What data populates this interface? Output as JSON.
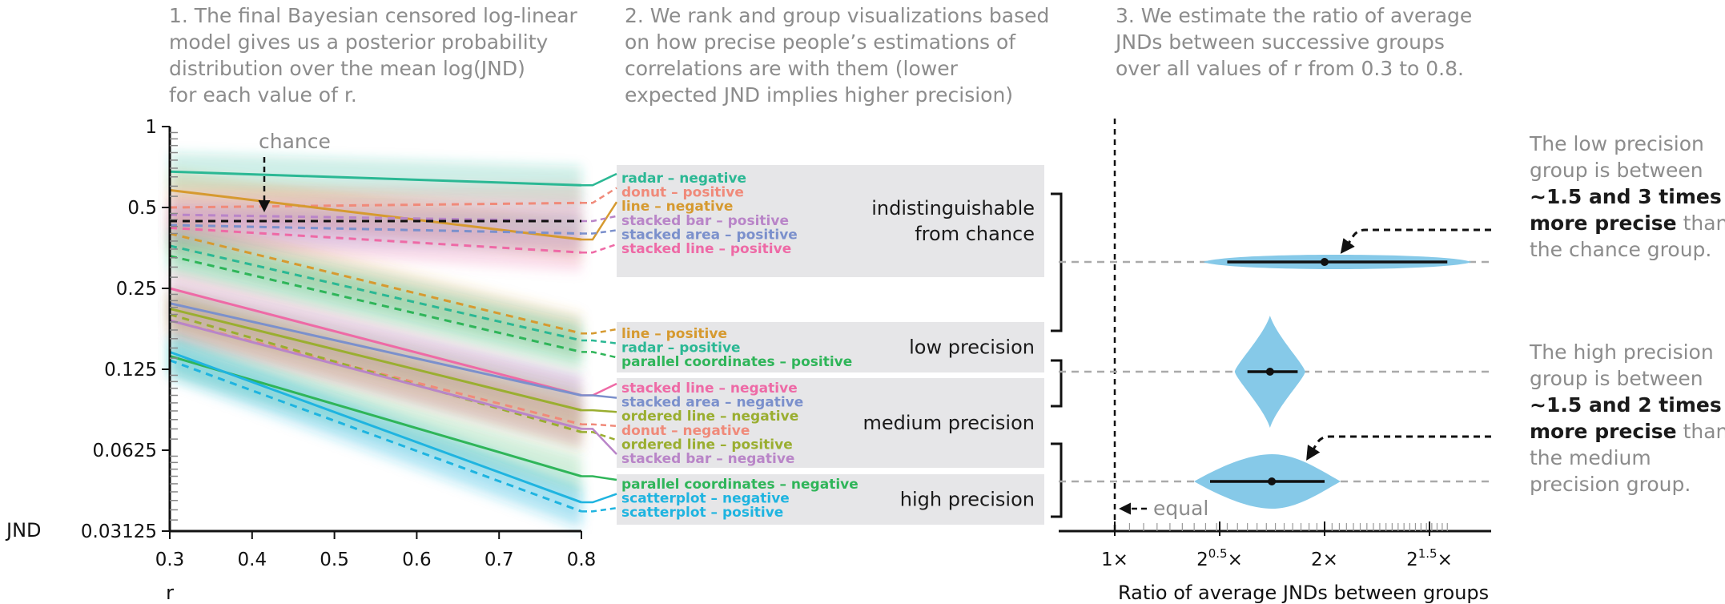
{
  "captions": {
    "panel1": [
      "1. The final Bayesian censored log-linear",
      "model gives us a posterior probability",
      "distribution over the mean log(JND)",
      "for each value of r."
    ],
    "panel2": [
      "2. We rank and group visualizations based",
      "on how precise people’s estimations of",
      "correlations are with them (lower",
      "expected JND implies higher precision)"
    ],
    "panel3": [
      "3. We estimate the ratio of average",
      "JNDs between successive groups",
      "over all values of r from 0.3 to 0.8."
    ]
  },
  "notes": {
    "chance_label": "chance",
    "equal_label": "equal",
    "low_note": [
      {
        "text": "The low precision",
        "bold": false
      },
      {
        "text": "group is between",
        "bold": false
      },
      {
        "text": "~1.5 and 3 times",
        "bold": true
      },
      {
        "parts": [
          {
            "text": "more precise",
            "bold": true
          },
          {
            "text": " than",
            "bold": false
          }
        ]
      },
      {
        "text": "the chance group.",
        "bold": false
      }
    ],
    "high_note": [
      {
        "text": "The high precision",
        "bold": false
      },
      {
        "text": "group is between",
        "bold": false
      },
      {
        "text": "~1.5 and 2 times",
        "bold": true
      },
      {
        "parts": [
          {
            "text": "more precise",
            "bold": true
          },
          {
            "text": " than",
            "bold": false
          }
        ]
      },
      {
        "text": "the medium",
        "bold": false
      },
      {
        "text": "precision group.",
        "bold": false
      }
    ]
  },
  "chart_data": [
    {
      "type": "line",
      "xlabel": "r",
      "ylabel": "JND",
      "scale_y": "log2",
      "xlim": [
        0.3,
        0.8
      ],
      "ylim": [
        0.03125,
        1
      ],
      "x_ticks": [
        "0.3",
        "0.4",
        "0.5",
        "0.6",
        "0.7",
        "0.8"
      ],
      "y_ticks": [
        "1",
        "0.5",
        "0.25",
        "0.125",
        "0.0625",
        "0.03125"
      ],
      "chance_jnd": 0.445,
      "series": [
        {
          "name": "radar – negative",
          "color": "#2bb894",
          "dashed": false,
          "y_at_03": 0.68,
          "y_at_08": 0.605,
          "group": "indistinguishable from chance"
        },
        {
          "name": "donut – positive",
          "color": "#f08a7a",
          "dashed": true,
          "y_at_03": 0.5,
          "y_at_08": 0.52,
          "group": "indistinguishable from chance"
        },
        {
          "name": "line – negative",
          "color": "#d69a30",
          "dashed": false,
          "y_at_03": 0.58,
          "y_at_08": 0.38,
          "group": "indistinguishable from chance"
        },
        {
          "name": "stacked bar – positive",
          "color": "#b985c8",
          "dashed": true,
          "y_at_03": 0.47,
          "y_at_08": 0.445,
          "group": "indistinguishable from chance"
        },
        {
          "name": "stacked area – positive",
          "color": "#7b90cc",
          "dashed": true,
          "y_at_03": 0.43,
          "y_at_08": 0.4,
          "group": "indistinguishable from chance"
        },
        {
          "name": "stacked line – positive",
          "color": "#ee6aa6",
          "dashed": true,
          "y_at_03": 0.42,
          "y_at_08": 0.34,
          "group": "indistinguishable from chance"
        },
        {
          "name": "line – positive",
          "color": "#d69a30",
          "dashed": true,
          "y_at_03": 0.4,
          "y_at_08": 0.17,
          "group": "low precision"
        },
        {
          "name": "radar – positive",
          "color": "#2bb894",
          "dashed": true,
          "y_at_03": 0.36,
          "y_at_08": 0.16,
          "group": "low precision"
        },
        {
          "name": "parallel coordinates – positive",
          "color": "#2fb559",
          "dashed": true,
          "y_at_03": 0.33,
          "y_at_08": 0.145,
          "group": "low precision"
        },
        {
          "name": "stacked line – negative",
          "color": "#ee6aa6",
          "dashed": false,
          "y_at_03": 0.25,
          "y_at_08": 0.1,
          "group": "medium precision"
        },
        {
          "name": "stacked area – negative",
          "color": "#7b90cc",
          "dashed": false,
          "y_at_03": 0.22,
          "y_at_08": 0.1,
          "group": "medium precision"
        },
        {
          "name": "ordered line – negative",
          "color": "#9aae30",
          "dashed": false,
          "y_at_03": 0.21,
          "y_at_08": 0.088,
          "group": "medium precision"
        },
        {
          "name": "donut – negative",
          "color": "#f08a7a",
          "dashed": true,
          "y_at_03": 0.19,
          "y_at_08": 0.078,
          "group": "medium precision"
        },
        {
          "name": "ordered line – positive",
          "color": "#9aae30",
          "dashed": true,
          "y_at_03": 0.2,
          "y_at_08": 0.073,
          "group": "medium precision"
        },
        {
          "name": "stacked bar – negative",
          "color": "#b985c8",
          "dashed": false,
          "y_at_03": 0.19,
          "y_at_08": 0.075,
          "group": "medium precision"
        },
        {
          "name": "parallel coordinates – negative",
          "color": "#2fb559",
          "dashed": false,
          "y_at_03": 0.14,
          "y_at_08": 0.05,
          "group": "high precision"
        },
        {
          "name": "scatterplot – negative",
          "color": "#1fb4e0",
          "dashed": false,
          "y_at_03": 0.145,
          "y_at_08": 0.04,
          "group": "high precision"
        },
        {
          "name": "scatterplot – positive",
          "color": "#1fb4e0",
          "dashed": true,
          "y_at_03": 0.135,
          "y_at_08": 0.037,
          "group": "high precision"
        }
      ],
      "groups": [
        {
          "label_lines": [
            "indistinguishable",
            "from chance"
          ],
          "items": [
            "radar – negative",
            "donut – positive",
            "line – negative",
            "stacked bar – positive",
            "stacked area – positive",
            "stacked line – positive"
          ]
        },
        {
          "label_lines": [
            "low precision"
          ],
          "items": [
            "line – positive",
            "radar – positive",
            "parallel coordinates – positive"
          ]
        },
        {
          "label_lines": [
            "medium precision"
          ],
          "items": [
            "stacked line – negative",
            "stacked area – negative",
            "ordered line – negative",
            "donut – negative",
            "ordered line – positive",
            "stacked bar – negative"
          ]
        },
        {
          "label_lines": [
            "high precision"
          ],
          "items": [
            "parallel coordinates – negative",
            "scatterplot – negative",
            "scatterplot – positive"
          ]
        }
      ]
    },
    {
      "type": "violin",
      "xlabel": "Ratio of average JNDs between groups",
      "scale_x": "log2",
      "x_ticks": [
        {
          "base": "1×",
          "sup": ""
        },
        {
          "base": "2",
          "sup": "0.5",
          "after": "×"
        },
        {
          "base": "2×",
          "sup": ""
        },
        {
          "base": "2",
          "sup": "1.5",
          "after": "×"
        }
      ],
      "reference_line": "equal",
      "violin_color": "#86c9e8",
      "comparisons": [
        {
          "between": "chance / low precision",
          "median": 2.0,
          "interval": [
            1.45,
            3.0
          ]
        },
        {
          "between": "low precision / medium precision",
          "median": 1.67,
          "interval": [
            1.55,
            1.83
          ]
        },
        {
          "between": "medium precision / high precision",
          "median": 1.68,
          "interval": [
            1.37,
            2.0
          ]
        }
      ]
    }
  ]
}
